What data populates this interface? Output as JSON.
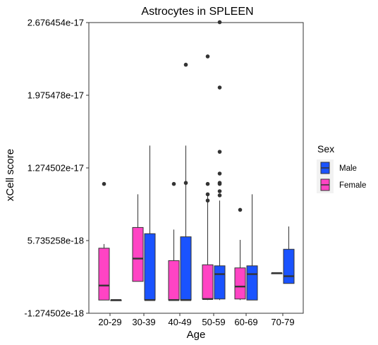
{
  "chart_data": {
    "type": "boxplot",
    "title": "Astrocytes in SPLEEN",
    "xlabel": "Age",
    "ylabel": "xCell score",
    "ylim": [
      -1.274502e-18,
      2.676454e-17
    ],
    "yticks": [
      -1.274502e-18,
      5.735258e-18,
      1.274502e-17,
      1.975478e-17,
      2.676454e-17
    ],
    "ytick_labels": [
      "-1.274502e-18",
      "5.735258e-18",
      "1.274502e-17",
      "1.975478e-17",
      "2.676454e-17"
    ],
    "categories": [
      "20-29",
      "30-39",
      "40-49",
      "50-59",
      "60-69",
      "70-79"
    ],
    "grid": false,
    "legend": {
      "title": "Sex",
      "position": "right"
    },
    "series": [
      {
        "name": "Male",
        "color": "#1a53ff",
        "boxes": [
          {
            "category": "20-29",
            "min": 0,
            "q1": 0,
            "median": 0,
            "q3": 0,
            "max": 0,
            "outliers": []
          },
          {
            "category": "30-39",
            "min": 0,
            "q1": 0,
            "median": 0,
            "q3": 6.4e-18,
            "max": 1.49e-17,
            "outliers": []
          },
          {
            "category": "40-49",
            "min": 0,
            "q1": 0,
            "median": 0,
            "q3": 6.1e-18,
            "max": 1.49e-17,
            "outliers": [
              1.13e-17,
              2.27e-17
            ]
          },
          {
            "category": "50-59",
            "min": 0,
            "q1": 1e-19,
            "median": 2.5e-18,
            "q3": 3.3e-18,
            "max": 9.6e-18,
            "outliers": [
              1.01e-17,
              1.05e-17,
              1.12e-17,
              1.13e-17,
              1.22e-17,
              2.05e-17,
              1.43e-17
            ]
          },
          {
            "category": "60-69",
            "min": 0,
            "q1": 0,
            "median": 2.5e-18,
            "q3": 3.3e-18,
            "max": 1.02e-17,
            "outliers": []
          },
          {
            "category": "70-79",
            "min": 1.6e-18,
            "q1": 1.6e-18,
            "median": 2.3e-18,
            "q3": 4.9e-18,
            "max": 7.1e-18,
            "outliers": []
          }
        ],
        "outliers_extra": {
          "50-59": [
            2.68e-17
          ]
        }
      },
      {
        "name": "Female",
        "color": "#ff44c4",
        "boxes": [
          {
            "category": "20-29",
            "min": 0,
            "q1": 0,
            "median": 1.4e-18,
            "q3": 5e-18,
            "max": 5.4e-18,
            "outliers": [
              1.12e-17
            ]
          },
          {
            "category": "30-39",
            "min": 1.8e-18,
            "q1": 1.8e-18,
            "median": 4e-18,
            "q3": 7e-18,
            "max": 1.02e-17,
            "outliers": []
          },
          {
            "category": "40-49",
            "min": 0,
            "q1": 0,
            "median": 0,
            "q3": 3.8e-18,
            "max": 6.8e-18,
            "outliers": [
              1.12e-17
            ]
          },
          {
            "category": "50-59",
            "min": 0,
            "q1": 1e-19,
            "median": 1e-19,
            "q3": 3.4e-18,
            "max": 1.02e-17,
            "outliers": [
              9.6e-18,
              1.12e-17,
              1.02e-17,
              2.35e-17
            ]
          },
          {
            "category": "60-69",
            "min": 0,
            "q1": 1e-19,
            "median": 1.3e-18,
            "q3": 3.1e-18,
            "max": 5.8e-18,
            "outliers": [
              8.7e-18
            ]
          },
          {
            "category": "70-79",
            "min": 2.6e-18,
            "q1": 2.6e-18,
            "median": 2.6e-18,
            "q3": 2.6e-18,
            "max": 2.6e-18,
            "outliers": []
          }
        ]
      }
    ]
  }
}
